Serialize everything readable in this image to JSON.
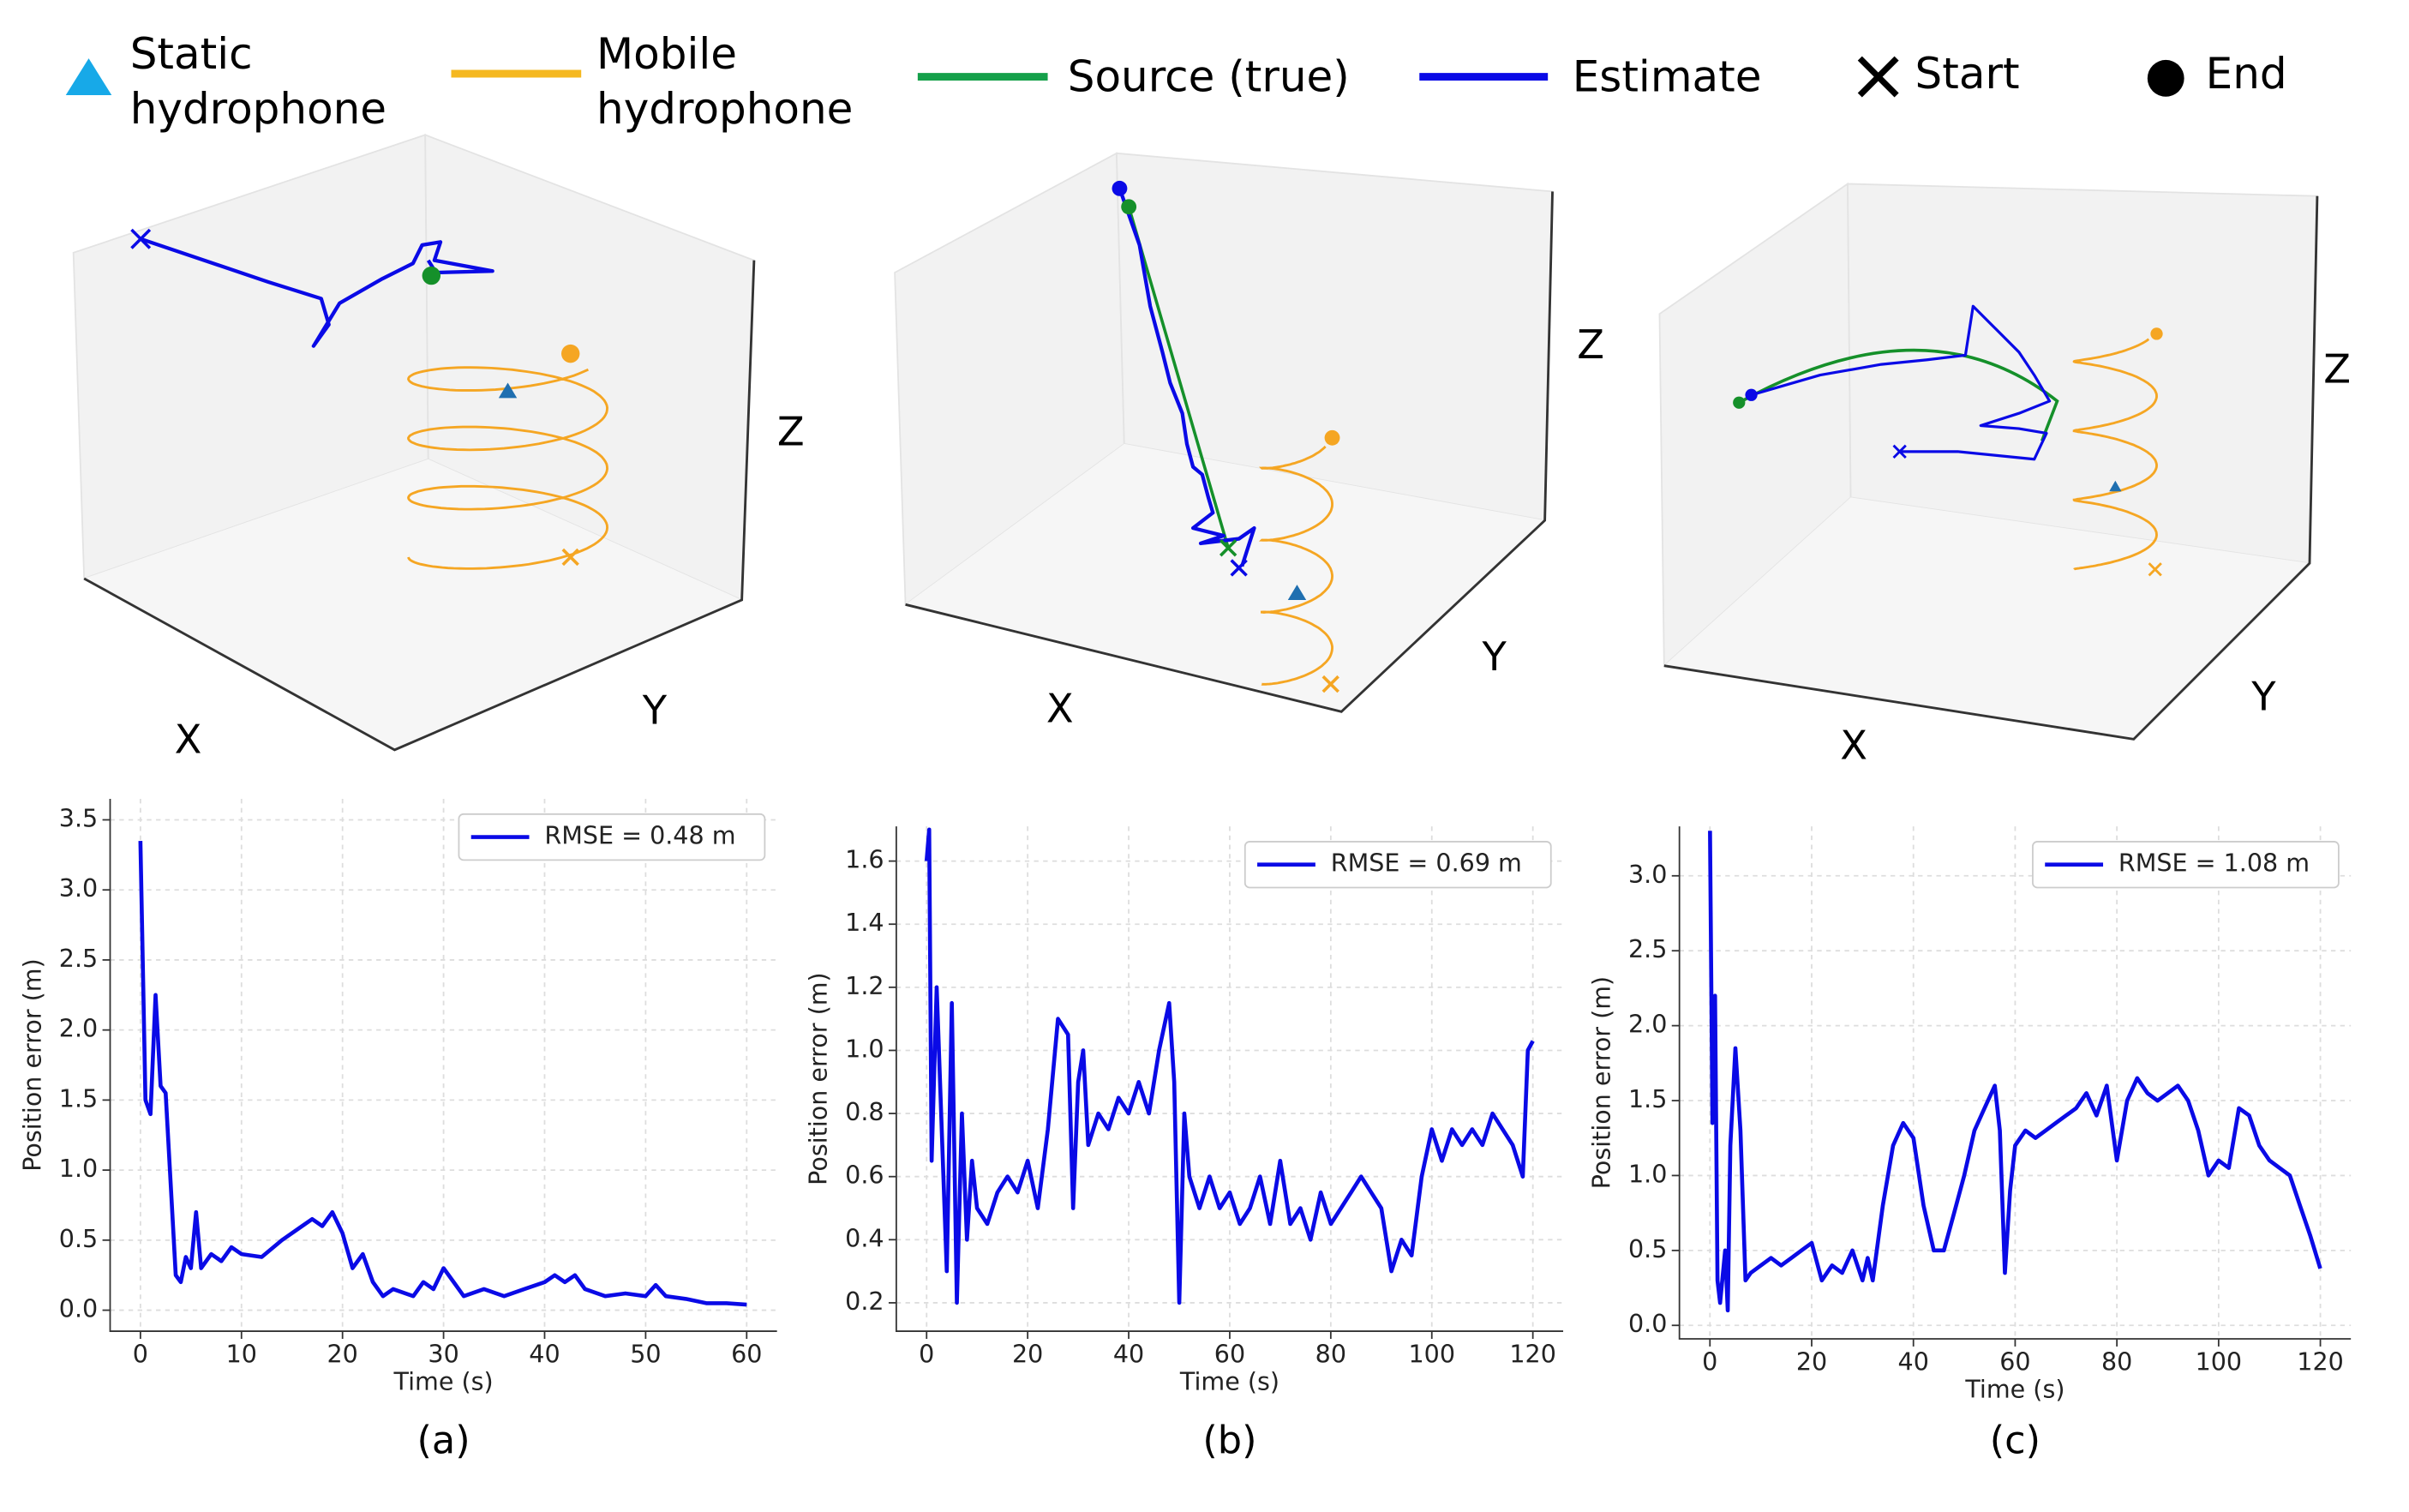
{
  "legend": [
    {
      "lines": [
        "Static",
        "hydrophone"
      ]
    },
    {
      "lines": [
        "Mobile",
        "hydrophone"
      ]
    },
    {
      "lines": [
        "Source (true)"
      ]
    },
    {
      "lines": [
        "Estimate"
      ]
    },
    {
      "lines": [
        "Start"
      ]
    },
    {
      "lines": [
        "End"
      ]
    }
  ],
  "scenes": [
    {
      "axis_labels": [
        "X",
        "Y",
        "Z"
      ]
    },
    {
      "axis_labels": [
        "X",
        "Y",
        "Z"
      ]
    },
    {
      "axis_labels": [
        "X",
        "Y",
        "Z"
      ]
    }
  ],
  "chart_data": [
    {
      "type": "line",
      "caption": "(a)",
      "xlabel": "Time (s)",
      "ylabel": "Position error (m)",
      "grid": true,
      "legend": "upper right",
      "xlim": [
        -3,
        63
      ],
      "xticks": [
        0,
        10,
        20,
        30,
        40,
        50,
        60
      ],
      "ylim": [
        -0.15,
        3.65
      ],
      "yticks": [
        {
          "value": 0,
          "label": "0.0"
        },
        0.5,
        {
          "value": 1,
          "label": "1.0"
        },
        1.5,
        {
          "value": 2,
          "label": "2.0"
        },
        2.5,
        {
          "value": 3,
          "label": "3.0"
        },
        3.5
      ],
      "x": [
        0,
        0.5,
        1,
        1.5,
        2,
        2.5,
        3,
        3.5,
        4,
        4.5,
        5,
        5.5,
        6,
        7,
        8,
        9,
        10,
        12,
        14,
        16,
        17,
        18,
        19,
        20,
        21,
        22,
        23,
        24,
        25,
        27,
        28,
        29,
        30,
        31,
        32,
        34,
        36,
        38,
        40,
        41,
        42,
        43,
        44,
        46,
        48,
        50,
        51,
        52,
        54,
        56,
        58,
        60
      ],
      "series": [
        {
          "name": "RMSE = 0.48 m",
          "color": "#0a0ae6",
          "values": [
            3.35,
            1.5,
            1.4,
            2.25,
            1.6,
            1.55,
            0.9,
            0.25,
            0.2,
            0.38,
            0.3,
            0.7,
            0.3,
            0.4,
            0.35,
            0.45,
            0.4,
            0.38,
            0.5,
            0.6,
            0.65,
            0.6,
            0.7,
            0.55,
            0.3,
            0.4,
            0.2,
            0.1,
            0.15,
            0.1,
            0.2,
            0.15,
            0.3,
            0.2,
            0.1,
            0.15,
            0.1,
            0.15,
            0.2,
            0.25,
            0.2,
            0.25,
            0.15,
            0.1,
            0.12,
            0.1,
            0.18,
            0.1,
            0.08,
            0.05,
            0.05,
            0.04
          ]
        }
      ]
    },
    {
      "type": "line",
      "caption": "(b)",
      "xlabel": "Time (s)",
      "ylabel": "Position error (m)",
      "grid": true,
      "legend": "upper right",
      "xlim": [
        -6,
        126
      ],
      "xticks": [
        0,
        20,
        40,
        60,
        80,
        100,
        120
      ],
      "ylim": [
        0.11,
        1.71
      ],
      "yticks": [
        0.2,
        0.4,
        0.6,
        0.8,
        {
          "value": 1,
          "label": "1.0"
        },
        1.2,
        1.4,
        1.6
      ],
      "x": [
        0,
        0.5,
        1,
        2,
        3,
        4,
        5,
        6,
        7,
        8,
        9,
        10,
        12,
        14,
        16,
        18,
        20,
        22,
        24,
        26,
        28,
        29,
        30,
        31,
        32,
        34,
        36,
        38,
        40,
        42,
        44,
        46,
        48,
        49,
        50,
        51,
        52,
        54,
        56,
        58,
        60,
        62,
        64,
        66,
        68,
        70,
        72,
        74,
        76,
        78,
        80,
        82,
        84,
        86,
        88,
        90,
        92,
        94,
        96,
        98,
        100,
        102,
        104,
        106,
        108,
        110,
        112,
        114,
        116,
        118,
        119,
        120
      ],
      "series": [
        {
          "name": "RMSE = 0.69 m",
          "color": "#0a0ae6",
          "values": [
            1.6,
            1.7,
            0.65,
            1.2,
            0.75,
            0.3,
            1.15,
            0.2,
            0.8,
            0.4,
            0.65,
            0.5,
            0.45,
            0.55,
            0.6,
            0.55,
            0.65,
            0.5,
            0.75,
            1.1,
            1.05,
            0.5,
            0.9,
            1.0,
            0.7,
            0.8,
            0.75,
            0.85,
            0.8,
            0.9,
            0.8,
            1.0,
            1.15,
            0.9,
            0.2,
            0.8,
            0.6,
            0.5,
            0.6,
            0.5,
            0.55,
            0.45,
            0.5,
            0.6,
            0.45,
            0.65,
            0.45,
            0.5,
            0.4,
            0.55,
            0.45,
            0.5,
            0.55,
            0.6,
            0.55,
            0.5,
            0.3,
            0.4,
            0.35,
            0.6,
            0.75,
            0.65,
            0.75,
            0.7,
            0.75,
            0.7,
            0.8,
            0.75,
            0.7,
            0.6,
            1.0,
            1.03
          ]
        }
      ]
    },
    {
      "type": "line",
      "caption": "(c)",
      "xlabel": "Time (s)",
      "ylabel": "Position error (m)",
      "grid": true,
      "legend": "upper right",
      "xlim": [
        -6,
        126
      ],
      "xticks": [
        0,
        20,
        40,
        60,
        80,
        100,
        120
      ],
      "ylim": [
        -0.09,
        3.33
      ],
      "yticks": [
        {
          "value": 0,
          "label": "0.0"
        },
        0.5,
        {
          "value": 1,
          "label": "1.0"
        },
        1.5,
        {
          "value": 2,
          "label": "2.0"
        },
        2.5,
        {
          "value": 3,
          "label": "3.0"
        }
      ],
      "x": [
        0,
        0.5,
        1,
        1.5,
        2,
        3,
        3.5,
        4,
        5,
        6,
        7,
        8,
        10,
        12,
        14,
        16,
        18,
        20,
        22,
        24,
        26,
        28,
        30,
        31,
        32,
        34,
        36,
        38,
        40,
        42,
        44,
        46,
        48,
        50,
        52,
        54,
        56,
        57,
        58,
        59,
        60,
        62,
        64,
        66,
        68,
        70,
        72,
        74,
        76,
        78,
        80,
        82,
        84,
        86,
        88,
        90,
        92,
        94,
        96,
        98,
        100,
        102,
        104,
        106,
        108,
        110,
        112,
        114,
        116,
        118,
        120
      ],
      "series": [
        {
          "name": "RMSE = 1.08 m",
          "color": "#0a0ae6",
          "values": [
            3.3,
            1.35,
            2.2,
            0.3,
            0.15,
            0.5,
            0.1,
            1.2,
            1.85,
            1.3,
            0.3,
            0.35,
            0.4,
            0.45,
            0.4,
            0.45,
            0.5,
            0.55,
            0.3,
            0.4,
            0.35,
            0.5,
            0.3,
            0.45,
            0.3,
            0.8,
            1.2,
            1.35,
            1.25,
            0.8,
            0.5,
            0.5,
            0.75,
            1.0,
            1.3,
            1.45,
            1.6,
            1.3,
            0.35,
            0.9,
            1.2,
            1.3,
            1.25,
            1.3,
            1.35,
            1.4,
            1.45,
            1.55,
            1.4,
            1.6,
            1.1,
            1.5,
            1.65,
            1.55,
            1.5,
            1.55,
            1.6,
            1.5,
            1.3,
            1.0,
            1.1,
            1.05,
            1.45,
            1.4,
            1.2,
            1.1,
            1.05,
            1.0,
            0.8,
            0.6,
            0.38
          ]
        }
      ]
    }
  ]
}
